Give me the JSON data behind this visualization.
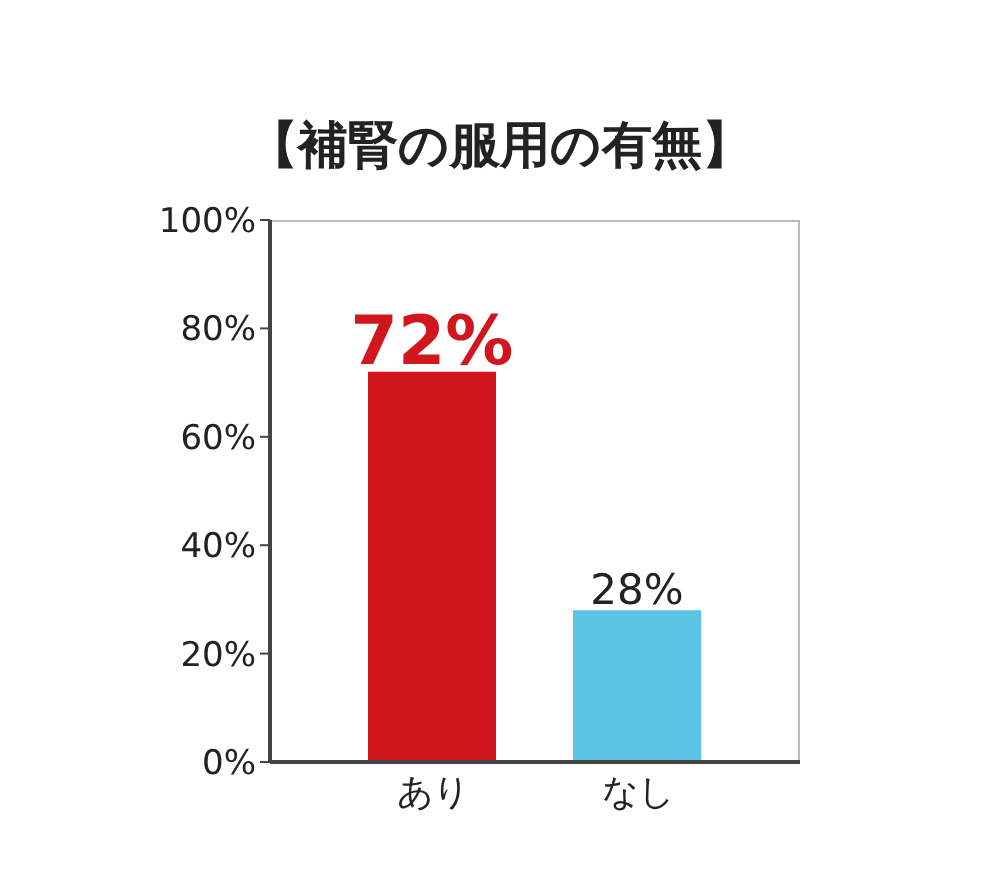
{
  "chart_data": {
    "type": "bar",
    "title": "【補腎の服用の有無】",
    "categories": [
      "あり",
      "なし"
    ],
    "values": [
      72,
      28
    ],
    "colors": [
      "#d2161e",
      "#5bc4e4"
    ],
    "value_labels": [
      "72%",
      "28%"
    ],
    "ylim": [
      0,
      100
    ],
    "yticks": [
      {
        "value": 0,
        "label": "0%"
      },
      {
        "value": 20,
        "label": "20%"
      },
      {
        "value": 40,
        "label": "40%"
      },
      {
        "value": 60,
        "label": "60%"
      },
      {
        "value": 80,
        "label": "80%"
      },
      {
        "value": 100,
        "label": "100%"
      }
    ],
    "grid": false,
    "legend": false
  }
}
